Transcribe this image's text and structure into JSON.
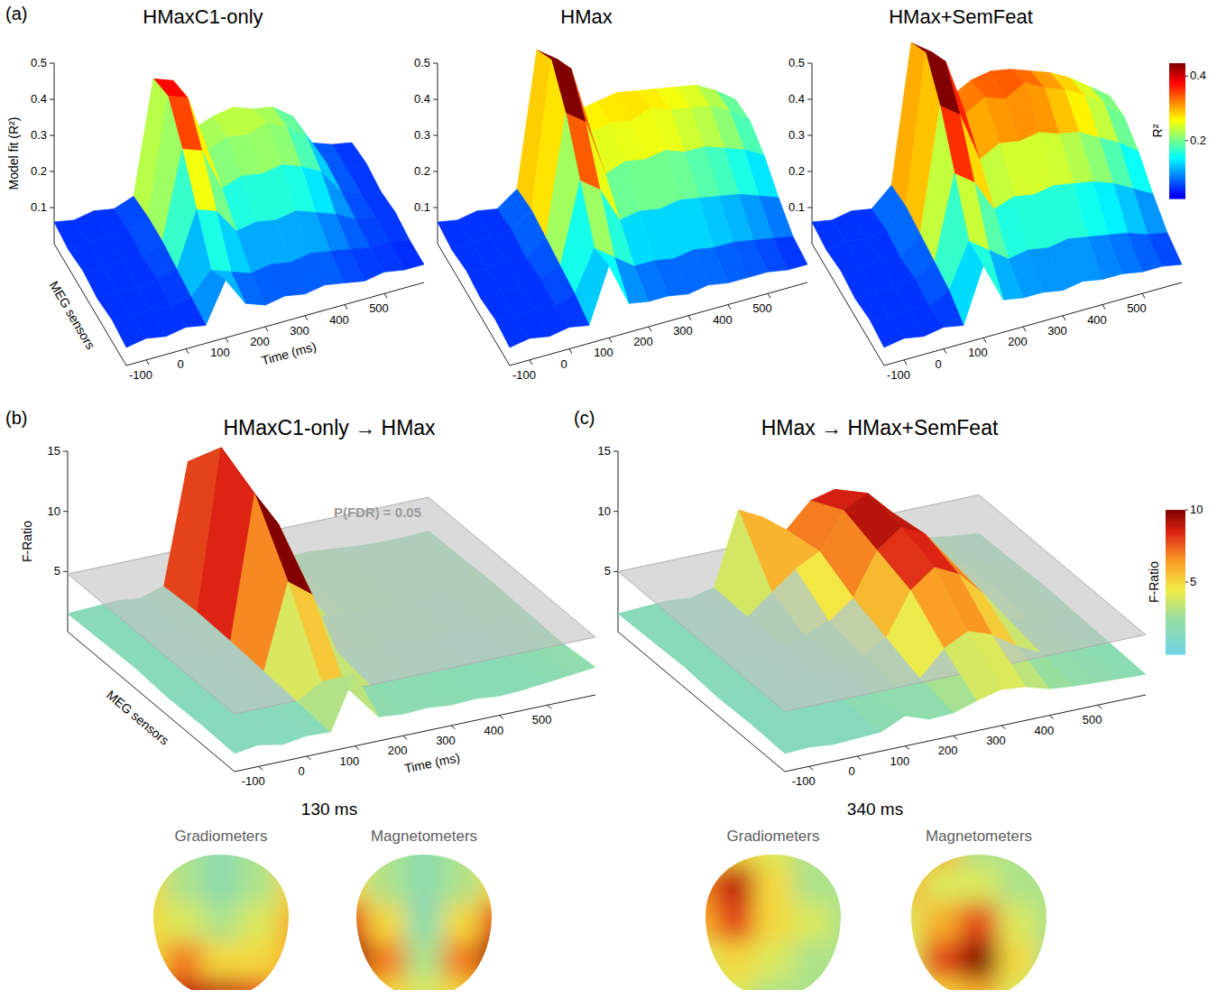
{
  "chart_data": [
    {
      "type": "surface",
      "panel_label": "(a)",
      "title": "HMaxC1-only",
      "xlabel": "Time (ms)",
      "ylabel": "MEG sensors",
      "zlabel": "Model fit (R²)",
      "x": [
        -150,
        -100,
        -50,
        0,
        50,
        100,
        150,
        200,
        250,
        300,
        350,
        400,
        450,
        500,
        550,
        600
      ],
      "xlim": [
        -150,
        600
      ],
      "xticks": [
        -100,
        0,
        100,
        200,
        300,
        400,
        500
      ],
      "zlim": [
        0,
        0.5
      ],
      "zticks": [
        0.1,
        0.2,
        0.3,
        0.4,
        0.5
      ],
      "color": "jet",
      "clim": [
        0.02,
        0.44
      ],
      "z": [
        [
          0.05,
          0.06,
          0.05,
          0.06,
          0.05,
          0.16,
          0.08,
          0.06,
          0.07,
          0.06,
          0.07,
          0.06,
          0.05,
          0.06,
          0.05,
          0.05
        ],
        [
          0.06,
          0.05,
          0.06,
          0.05,
          0.06,
          0.12,
          0.1,
          0.08,
          0.09,
          0.08,
          0.09,
          0.08,
          0.07,
          0.06,
          0.06,
          0.05
        ],
        [
          0.05,
          0.06,
          0.05,
          0.06,
          0.07,
          0.22,
          0.2,
          0.13,
          0.14,
          0.13,
          0.14,
          0.12,
          0.1,
          0.07,
          0.06,
          0.06
        ],
        [
          0.06,
          0.05,
          0.06,
          0.05,
          0.08,
          0.32,
          0.3,
          0.18,
          0.2,
          0.19,
          0.2,
          0.18,
          0.15,
          0.08,
          0.06,
          0.05
        ],
        [
          0.05,
          0.06,
          0.05,
          0.06,
          0.08,
          0.4,
          0.38,
          0.22,
          0.24,
          0.23,
          0.25,
          0.22,
          0.18,
          0.09,
          0.06,
          0.06
        ],
        [
          0.06,
          0.05,
          0.06,
          0.05,
          0.07,
          0.38,
          0.36,
          0.21,
          0.23,
          0.24,
          0.22,
          0.21,
          0.17,
          0.08,
          0.06,
          0.05
        ]
      ]
    },
    {
      "type": "surface",
      "title": "HMax",
      "x": [
        -150,
        -100,
        -50,
        0,
        50,
        100,
        150,
        200,
        250,
        300,
        350,
        400,
        450,
        500,
        550,
        600
      ],
      "xlim": [
        -150,
        600
      ],
      "xticks": [
        -100,
        0,
        100,
        200,
        300,
        400,
        500
      ],
      "zlim": [
        0,
        0.5
      ],
      "zticks": [
        0.1,
        0.2,
        0.3,
        0.4,
        0.5
      ],
      "color": "jet",
      "clim": [
        0.02,
        0.44
      ],
      "z": [
        [
          0.05,
          0.06,
          0.05,
          0.06,
          0.05,
          0.2,
          0.08,
          0.07,
          0.07,
          0.06,
          0.07,
          0.06,
          0.06,
          0.06,
          0.05,
          0.05
        ],
        [
          0.06,
          0.05,
          0.06,
          0.05,
          0.07,
          0.18,
          0.14,
          0.1,
          0.1,
          0.09,
          0.1,
          0.09,
          0.09,
          0.08,
          0.07,
          0.06
        ],
        [
          0.05,
          0.06,
          0.05,
          0.06,
          0.08,
          0.3,
          0.26,
          0.16,
          0.17,
          0.16,
          0.17,
          0.16,
          0.15,
          0.14,
          0.12,
          0.1
        ],
        [
          0.06,
          0.05,
          0.06,
          0.05,
          0.09,
          0.42,
          0.38,
          0.22,
          0.24,
          0.23,
          0.24,
          0.22,
          0.22,
          0.2,
          0.18,
          0.15
        ],
        [
          0.05,
          0.06,
          0.05,
          0.06,
          0.1,
          0.5,
          0.46,
          0.27,
          0.28,
          0.27,
          0.29,
          0.27,
          0.26,
          0.25,
          0.22,
          0.18
        ],
        [
          0.06,
          0.05,
          0.06,
          0.05,
          0.09,
          0.46,
          0.42,
          0.26,
          0.27,
          0.28,
          0.27,
          0.26,
          0.25,
          0.24,
          0.21,
          0.17
        ]
      ]
    },
    {
      "type": "surface",
      "title": "HMax+SemFeat",
      "x": [
        -150,
        -100,
        -50,
        0,
        50,
        100,
        150,
        200,
        250,
        300,
        350,
        400,
        450,
        500,
        550,
        600
      ],
      "xlim": [
        -150,
        600
      ],
      "xticks": [
        -100,
        0,
        100,
        200,
        300,
        400,
        500
      ],
      "zlim": [
        0,
        0.5
      ],
      "zticks": [
        0.1,
        0.2,
        0.3,
        0.4,
        0.5
      ],
      "color": "jet",
      "clim": [
        0.02,
        0.44
      ],
      "colorbar": {
        "label": "R²",
        "ticks": [
          0.2,
          0.4
        ]
      },
      "z": [
        [
          0.05,
          0.06,
          0.05,
          0.06,
          0.05,
          0.2,
          0.09,
          0.08,
          0.08,
          0.07,
          0.08,
          0.07,
          0.07,
          0.06,
          0.06,
          0.05
        ],
        [
          0.06,
          0.05,
          0.06,
          0.05,
          0.08,
          0.2,
          0.16,
          0.12,
          0.13,
          0.12,
          0.13,
          0.12,
          0.11,
          0.1,
          0.08,
          0.07
        ],
        [
          0.05,
          0.06,
          0.05,
          0.06,
          0.09,
          0.32,
          0.28,
          0.19,
          0.21,
          0.2,
          0.21,
          0.2,
          0.19,
          0.17,
          0.14,
          0.11
        ],
        [
          0.06,
          0.05,
          0.06,
          0.05,
          0.1,
          0.44,
          0.4,
          0.26,
          0.29,
          0.28,
          0.29,
          0.27,
          0.26,
          0.23,
          0.2,
          0.16
        ],
        [
          0.05,
          0.06,
          0.05,
          0.06,
          0.11,
          0.52,
          0.48,
          0.32,
          0.35,
          0.33,
          0.36,
          0.33,
          0.31,
          0.28,
          0.24,
          0.19
        ],
        [
          0.06,
          0.05,
          0.06,
          0.05,
          0.1,
          0.48,
          0.44,
          0.3,
          0.33,
          0.34,
          0.33,
          0.31,
          0.29,
          0.26,
          0.22,
          0.18
        ]
      ]
    },
    {
      "type": "surface",
      "panel_label": "(b)",
      "title": "HMaxC1-only → HMax",
      "xlabel": "Time (ms)",
      "ylabel": "MEG sensors",
      "zlabel": "F-Ratio",
      "x": [
        -150,
        -100,
        -50,
        0,
        50,
        100,
        150,
        200,
        250,
        300,
        350,
        400,
        450,
        500,
        550,
        600
      ],
      "xlim": [
        -150,
        600
      ],
      "xticks": [
        -100,
        0,
        100,
        200,
        300,
        400,
        500
      ],
      "zlim": [
        0,
        15
      ],
      "zticks": [
        5,
        10,
        15
      ],
      "color": "cyan-yellow-red",
      "clim": [
        0,
        10
      ],
      "threshold": 4.8,
      "annotation": "P(FDR) = 0.05",
      "z": [
        [
          1.5,
          1.8,
          1.4,
          1.7,
          1.6,
          6.0,
          2.0,
          1.8,
          1.9,
          1.7,
          1.8,
          1.6,
          1.7,
          1.9,
          2.1,
          2.3
        ],
        [
          1.6,
          1.5,
          1.7,
          1.5,
          1.8,
          3.0,
          2.2,
          1.9,
          2.0,
          1.8,
          1.9,
          1.8,
          1.7,
          1.8,
          1.9,
          2.0
        ],
        [
          1.5,
          1.7,
          1.5,
          1.6,
          2.0,
          9.0,
          7.5,
          2.4,
          2.2,
          2.0,
          2.1,
          1.9,
          1.8,
          1.9,
          2.0,
          2.1
        ],
        [
          1.7,
          1.6,
          1.8,
          1.5,
          2.2,
          14.0,
          11.0,
          3.0,
          2.6,
          2.3,
          2.5,
          2.2,
          2.0,
          2.0,
          2.1,
          2.2
        ],
        [
          1.6,
          1.8,
          1.5,
          1.7,
          2.3,
          15.5,
          12.0,
          5.5,
          3.0,
          2.5,
          2.8,
          2.4,
          2.2,
          2.1,
          2.0,
          2.1
        ],
        [
          1.5,
          1.6,
          1.7,
          1.5,
          2.1,
          12.0,
          10.0,
          3.5,
          2.6,
          2.3,
          2.4,
          2.2,
          2.0,
          1.9,
          1.9,
          2.0
        ]
      ],
      "topomaps": {
        "time_label": "130 ms",
        "maps": [
          {
            "title": "Gradiometers",
            "cells": [
              [
                4,
                3,
                2,
                3,
                5
              ],
              [
                5,
                3,
                2,
                3,
                5
              ],
              [
                5,
                4,
                3,
                4,
                6
              ],
              [
                5,
                7,
                5,
                5,
                6
              ],
              [
                7,
                9,
                9,
                8,
                6
              ]
            ]
          },
          {
            "title": "Magnetometers",
            "cells": [
              [
                4,
                3,
                2,
                3,
                4
              ],
              [
                5,
                3,
                2,
                3,
                5
              ],
              [
                8,
                5,
                2,
                5,
                8
              ],
              [
                10,
                7,
                3,
                7,
                10
              ],
              [
                7,
                5,
                4,
                5,
                7
              ]
            ]
          }
        ]
      }
    },
    {
      "type": "surface",
      "panel_label": "(c)",
      "title": "HMax → HMax+SemFeat",
      "x": [
        -150,
        -100,
        -50,
        0,
        50,
        100,
        150,
        200,
        250,
        300,
        350,
        400,
        450,
        500,
        550,
        600
      ],
      "xlim": [
        -150,
        600
      ],
      "xticks": [
        -100,
        0,
        100,
        200,
        300,
        400,
        500
      ],
      "zlim": [
        0,
        15
      ],
      "zticks": [
        5,
        10,
        15
      ],
      "color": "cyan-yellow-red",
      "clim": [
        0,
        10
      ],
      "threshold": 5.0,
      "colorbar": {
        "label": "F-Ratio",
        "ticks": [
          5,
          10
        ]
      },
      "z": [
        [
          1.5,
          1.6,
          1.4,
          1.5,
          1.6,
          2.5,
          1.8,
          1.9,
          2.5,
          3.0,
          2.8,
          2.2,
          2.0,
          1.9,
          1.8,
          1.7
        ],
        [
          1.6,
          1.5,
          1.7,
          1.5,
          1.6,
          1.9,
          2.0,
          2.5,
          4.5,
          5.5,
          4.8,
          3.5,
          2.5,
          2.2,
          2.0,
          1.8
        ],
        [
          1.5,
          1.7,
          1.5,
          1.6,
          1.7,
          2.0,
          2.4,
          3.5,
          7.0,
          8.5,
          7.5,
          5.5,
          3.0,
          2.4,
          2.1,
          1.9
        ],
        [
          1.7,
          1.6,
          1.8,
          1.5,
          1.8,
          2.2,
          3.0,
          4.5,
          8.0,
          9.5,
          8.5,
          6.0,
          3.2,
          2.5,
          2.2,
          2.0
        ],
        [
          1.6,
          1.8,
          1.5,
          1.7,
          1.9,
          3.5,
          5.0,
          6.0,
          9.0,
          10.0,
          8.0,
          5.5,
          3.0,
          2.4,
          2.1,
          1.9
        ],
        [
          1.5,
          1.6,
          1.7,
          1.5,
          2.0,
          8.0,
          7.0,
          5.5,
          7.5,
          8.0,
          6.5,
          4.5,
          2.8,
          2.3,
          2.0,
          1.8
        ]
      ],
      "topomaps": {
        "time_label": "340 ms",
        "maps": [
          {
            "title": "Gradiometers",
            "cells": [
              [
                4,
                5,
                4,
                3,
                3
              ],
              [
                7,
                9,
                5,
                3,
                3
              ],
              [
                6,
                8,
                5,
                4,
                3
              ],
              [
                4,
                5,
                4,
                3,
                3
              ],
              [
                3,
                4,
                3,
                3,
                3
              ]
            ]
          },
          {
            "title": "Magnetometers",
            "cells": [
              [
                9,
                6,
                3,
                3,
                3
              ],
              [
                6,
                4,
                4,
                3,
                3
              ],
              [
                4,
                6,
                8,
                4,
                3
              ],
              [
                4,
                8,
                10,
                5,
                3
              ],
              [
                4,
                5,
                6,
                4,
                3
              ]
            ]
          }
        ]
      }
    }
  ]
}
